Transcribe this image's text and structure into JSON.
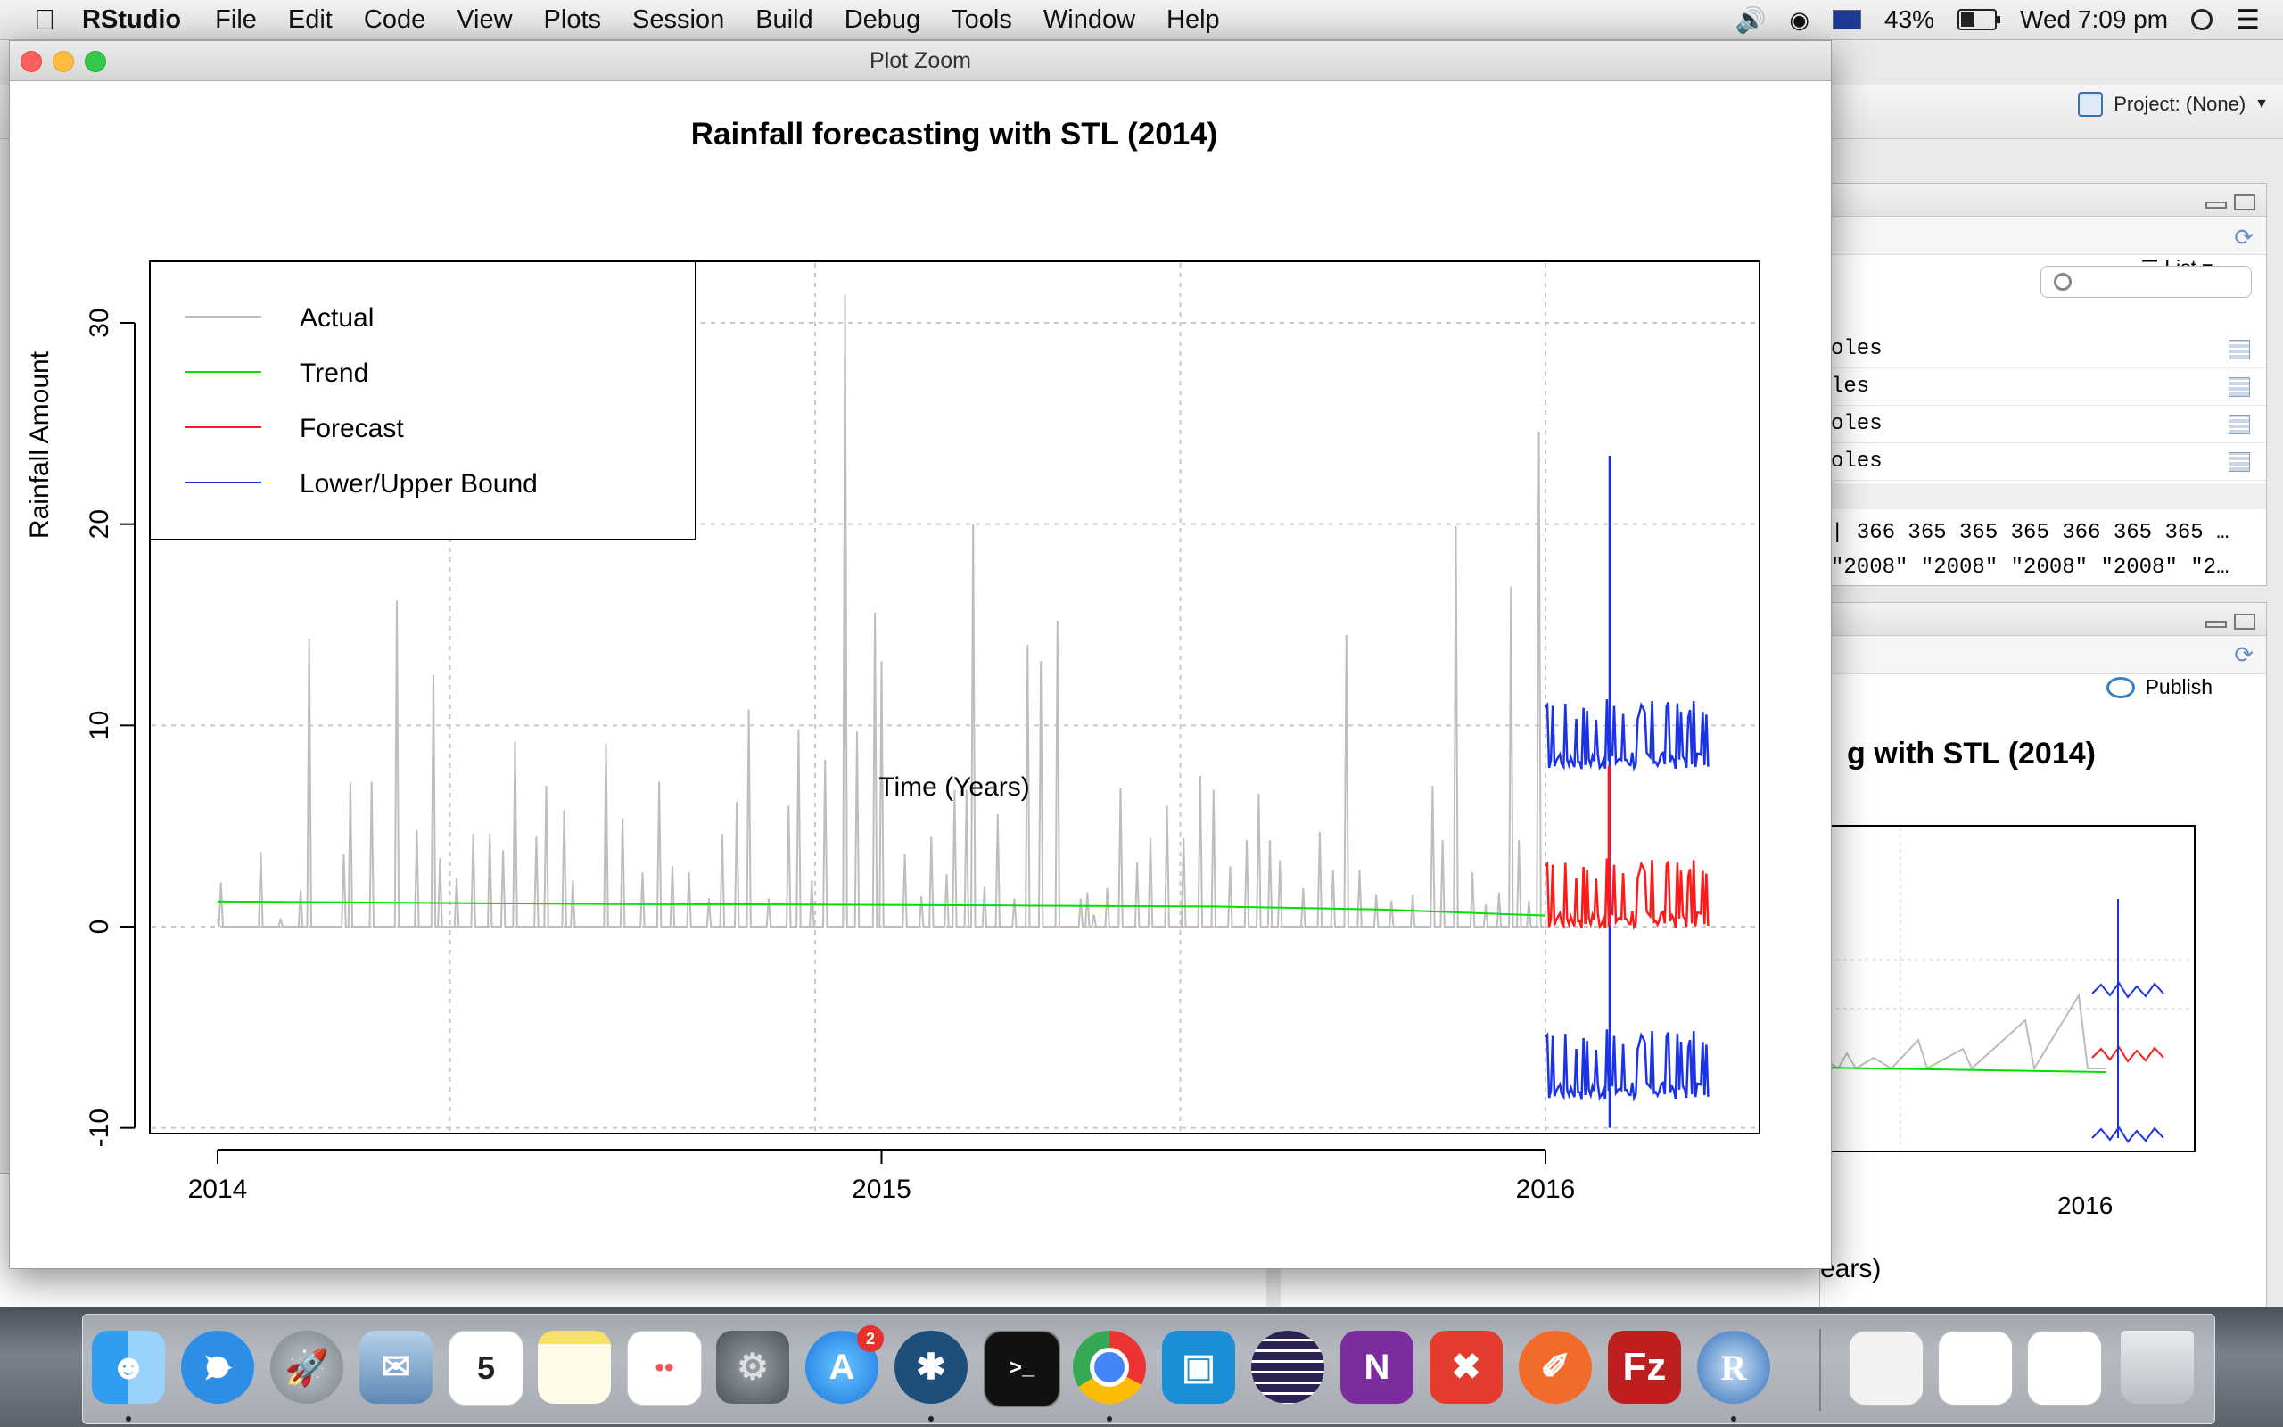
{
  "menubar": {
    "app_name": "RStudio",
    "menus": [
      "File",
      "Edit",
      "Code",
      "View",
      "Plots",
      "Session",
      "Build",
      "Debug",
      "Tools",
      "Window",
      "Help"
    ],
    "battery": "43%",
    "clock": "Wed 7:09 pm"
  },
  "rstudio": {
    "project_label": "Project: (None)",
    "environment": {
      "list_label": "List",
      "rows": [
        "oles",
        "les",
        "oles",
        "oles"
      ],
      "values_line_1": "| 366 365 365 365 366 365 365 …",
      "values_line_2": "\"2008\" \"2008\" \"2008\" \"2008\" \"2…"
    },
    "plots_pane": {
      "publish_label": "Publish",
      "title_fragment": "g with STL (2014)",
      "x_tick": "2016",
      "x_label_fragment": "ears)"
    }
  },
  "zoom_window": {
    "title": "Plot Zoom"
  },
  "chart_data": {
    "type": "line",
    "title": "Rainfall forecasting with STL (2014)",
    "xlabel": "Time (Years)",
    "ylabel": "Rainfall Amount",
    "xlim": [
      2013.92,
      2016.33
    ],
    "ylim": [
      -10.5,
      33
    ],
    "x_ticks": [
      2014,
      2015,
      2016
    ],
    "x_tick_labels": [
      "2014",
      "2015",
      "2016"
    ],
    "y_ticks": [
      -10,
      0,
      10,
      20,
      30
    ],
    "y_tick_labels": [
      "-10",
      "0",
      "10",
      "20",
      "30"
    ],
    "x_grid": [
      2014.35,
      2014.9,
      2015.45,
      2016.0
    ],
    "y_grid": [
      -10,
      0,
      10,
      20,
      30
    ],
    "grid": true,
    "legend_position": "top-left",
    "series": [
      {
        "name": "Actual",
        "color": "#bebebe",
        "spikes": [
          [
            2014.005,
            2.2
          ],
          [
            2014.065,
            3.7
          ],
          [
            2014.095,
            0.4
          ],
          [
            2014.125,
            1.8
          ],
          [
            2014.138,
            14.3
          ],
          [
            2014.19,
            3.6
          ],
          [
            2014.2,
            7.2
          ],
          [
            2014.232,
            7.2
          ],
          [
            2014.27,
            16.2
          ],
          [
            2014.3,
            4.8
          ],
          [
            2014.325,
            12.5
          ],
          [
            2014.335,
            3.4
          ],
          [
            2014.36,
            2.4
          ],
          [
            2014.385,
            4.6
          ],
          [
            2014.41,
            4.6
          ],
          [
            2014.43,
            3.8
          ],
          [
            2014.448,
            9.2
          ],
          [
            2014.48,
            4.5
          ],
          [
            2014.495,
            7.0
          ],
          [
            2014.522,
            5.8
          ],
          [
            2014.535,
            2.3
          ],
          [
            2014.585,
            9.1
          ],
          [
            2014.61,
            5.4
          ],
          [
            2014.64,
            2.7
          ],
          [
            2014.665,
            7.2
          ],
          [
            2014.685,
            3.0
          ],
          [
            2014.71,
            2.7
          ],
          [
            2014.74,
            1.4
          ],
          [
            2014.76,
            4.6
          ],
          [
            2014.782,
            6.2
          ],
          [
            2014.8,
            10.8
          ],
          [
            2014.83,
            1.4
          ],
          [
            2014.86,
            6.0
          ],
          [
            2014.875,
            9.8
          ],
          [
            2014.895,
            2.3
          ],
          [
            2014.915,
            8.3
          ],
          [
            2014.945,
            31.4
          ],
          [
            2014.963,
            9.7
          ],
          [
            2014.99,
            15.6
          ],
          [
            2015.0,
            13.2
          ],
          [
            2015.035,
            3.6
          ],
          [
            2015.06,
            1.5
          ],
          [
            2015.075,
            4.5
          ],
          [
            2015.098,
            2.6
          ],
          [
            2015.11,
            6.8
          ],
          [
            2015.128,
            6.8
          ],
          [
            2015.138,
            20.0
          ],
          [
            2015.155,
            2.0
          ],
          [
            2015.175,
            5.6
          ],
          [
            2015.2,
            1.4
          ],
          [
            2015.22,
            14.0
          ],
          [
            2015.24,
            13.2
          ],
          [
            2015.265,
            15.2
          ],
          [
            2015.3,
            1.4
          ],
          [
            2015.31,
            1.7
          ],
          [
            2015.32,
            0.6
          ],
          [
            2015.34,
            1.9
          ],
          [
            2015.36,
            6.9
          ],
          [
            2015.385,
            3.2
          ],
          [
            2015.405,
            4.4
          ],
          [
            2015.43,
            6.0
          ],
          [
            2015.455,
            4.4
          ],
          [
            2015.48,
            7.5
          ],
          [
            2015.5,
            6.8
          ],
          [
            2015.525,
            3.0
          ],
          [
            2015.55,
            4.3
          ],
          [
            2015.568,
            6.6
          ],
          [
            2015.585,
            4.3
          ],
          [
            2015.6,
            3.3
          ],
          [
            2015.635,
            1.9
          ],
          [
            2015.66,
            4.7
          ],
          [
            2015.68,
            2.8
          ],
          [
            2015.7,
            14.5
          ],
          [
            2015.72,
            2.8
          ],
          [
            2015.745,
            1.6
          ],
          [
            2015.768,
            1.3
          ],
          [
            2015.8,
            1.6
          ],
          [
            2015.83,
            7.0
          ],
          [
            2015.845,
            4.3
          ],
          [
            2015.865,
            19.9
          ],
          [
            2015.89,
            2.7
          ],
          [
            2015.91,
            1.1
          ],
          [
            2015.93,
            1.7
          ],
          [
            2015.948,
            16.9
          ],
          [
            2015.96,
            4.3
          ],
          [
            2015.975,
            1.3
          ],
          [
            2015.99,
            24.6
          ]
        ]
      },
      {
        "name": "Trend",
        "color": "#00e000",
        "x": [
          2014.0,
          2014.3,
          2014.6,
          2014.9,
          2015.2,
          2015.5,
          2015.75,
          2016.0
        ],
        "y": [
          1.25,
          1.18,
          1.12,
          1.1,
          1.05,
          1.0,
          0.85,
          0.55
        ]
      },
      {
        "name": "Forecast",
        "color": "#ff1a1a",
        "x_start": 2016.0,
        "x_end": 2016.245,
        "baseline": 0.5,
        "amplitude": 3.5
      },
      {
        "name": "Lower/Upper Bound",
        "color": "#1a33e6",
        "upper_baseline": 8.4,
        "lower_baseline": -8.0,
        "amplitude": 3.5,
        "x_start": 2016.0,
        "x_end": 2016.245,
        "spike": {
          "x": 2016.097,
          "y_top": 23.4,
          "y_bottom": -10.0
        }
      }
    ]
  }
}
